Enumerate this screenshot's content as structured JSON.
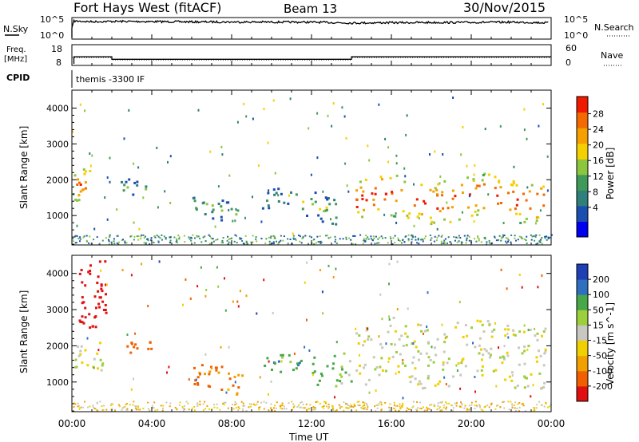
{
  "header": {
    "title": "Fort Hays West (fitACF)",
    "beam": "Beam 13",
    "date": "30/Nov/2015"
  },
  "noise_panel": {
    "left_label": "N.Sky",
    "right_label": "N.Search",
    "ticks_left": [
      "10^5",
      "10^0"
    ],
    "ticks_right": [
      "10^5",
      "10^0"
    ]
  },
  "freq_panel": {
    "left_label_1": "Freq.",
    "left_label_2": "[MHz]",
    "ticks_left": [
      "18",
      "8"
    ],
    "right_label": "Nave",
    "ticks_right": [
      "60",
      "0"
    ]
  },
  "cpid": {
    "label": "CPID",
    "text": "themis -3300 IF"
  },
  "range_axis": {
    "label": "Slant Range [km]",
    "ticks": [
      "4000",
      "3000",
      "2000",
      "1000"
    ]
  },
  "time_axis": {
    "label": "Time UT",
    "ticks": [
      "00:00",
      "04:00",
      "08:00",
      "12:00",
      "16:00",
      "20:00",
      "00:00"
    ]
  },
  "power_scale": {
    "label": "Power [dB]",
    "ticks": [
      "28",
      "24",
      "20",
      "16",
      "12",
      "8",
      "4"
    ],
    "colors": [
      "#0000ee",
      "#1a4fb0",
      "#2f7f7a",
      "#3f9a5a",
      "#8cc63f",
      "#f5d000",
      "#f5a000",
      "#f56a00",
      "#ef1a00"
    ]
  },
  "velocity_scale": {
    "label": "Velocity [m s^-1]",
    "ticks": [
      "200",
      "100",
      "50",
      "15",
      "-15",
      "-50",
      "-100",
      "-200"
    ],
    "colors": [
      "#1f3fb5",
      "#2f6fc0",
      "#48a848",
      "#9ccf3c",
      "#c8c8c0",
      "#f0d000",
      "#f0a000",
      "#f06000",
      "#e01010"
    ]
  },
  "chart_data": [
    {
      "type": "line",
      "title": "Fort Hays West (fitACF)",
      "ylabel": "N.Sky",
      "xlabel": "",
      "x_range": [
        "00:00",
        "00:00"
      ],
      "scale": "log",
      "ylim": [
        1,
        100000
      ],
      "series": [
        {
          "name": "N.Sky",
          "x": [
            0.1,
            1,
            2,
            4,
            6,
            8,
            10,
            12,
            14,
            16,
            18,
            20,
            22,
            23.9
          ],
          "values": [
            30000,
            20000,
            25000,
            22000,
            18000,
            17000,
            16000,
            15000,
            9000,
            11000,
            12000,
            13000,
            15000,
            10000
          ]
        }
      ]
    },
    {
      "type": "line",
      "ylabel": "Freq. [MHz]",
      "ylim": [
        8,
        18
      ],
      "series": [
        {
          "name": "Freq.",
          "x": [
            0.1,
            0.1,
            2.0,
            2.0,
            14.0,
            14.0,
            24.0
          ],
          "values": [
            8,
            12.0,
            12.0,
            10.6,
            10.6,
            12.0,
            12.0
          ]
        }
      ]
    },
    {
      "type": "heatmap",
      "ylabel": "Slant Range [km]",
      "xlabel": "Time UT",
      "x_ticks": [
        "00:00",
        "04:00",
        "08:00",
        "12:00",
        "16:00",
        "20:00",
        "00:00"
      ],
      "ylim": [
        180,
        4500
      ],
      "colorbar": {
        "label": "Power [dB]",
        "ticks": [
          4,
          8,
          12,
          16,
          20,
          24,
          28
        ]
      },
      "features": [
        {
          "t": [
            0.0,
            1.0
          ],
          "range": [
            1300,
            2300
          ],
          "power": 26
        },
        {
          "t": [
            2.4,
            3.8
          ],
          "range": [
            1600,
            2100
          ],
          "power": 12
        },
        {
          "t": [
            6.0,
            8.3
          ],
          "range": [
            900,
            1500
          ],
          "power": 14
        },
        {
          "t": [
            9.5,
            11.2
          ],
          "range": [
            1200,
            1700
          ],
          "power": 12
        },
        {
          "t": [
            11.5,
            13.3
          ],
          "range": [
            900,
            1700
          ],
          "power": 16
        },
        {
          "t": [
            14.2,
            23.8
          ],
          "range": [
            900,
            2100
          ],
          "power": 28
        }
      ]
    },
    {
      "type": "heatmap",
      "ylabel": "Slant Range [km]",
      "xlabel": "Time UT",
      "x_ticks": [
        "00:00",
        "04:00",
        "08:00",
        "12:00",
        "16:00",
        "20:00",
        "00:00"
      ],
      "ylim": [
        180,
        4500
      ],
      "colorbar": {
        "label": "Velocity [m s^-1]",
        "ticks": [
          200,
          100,
          50,
          15,
          -15,
          -50,
          -100,
          -200
        ]
      },
      "features": [
        {
          "t": [
            0.0,
            1.5
          ],
          "range": [
            1200,
            2000
          ],
          "velocity": 0
        },
        {
          "t": [
            0.3,
            1.7
          ],
          "range": [
            2400,
            4300
          ],
          "velocity": -200
        },
        {
          "t": [
            2.5,
            4.0
          ],
          "range": [
            1900,
            2300
          ],
          "velocity": -100
        },
        {
          "t": [
            6.0,
            8.5
          ],
          "range": [
            800,
            1500
          ],
          "velocity": -80
        },
        {
          "t": [
            9.5,
            11.5
          ],
          "range": [
            1200,
            1700
          ],
          "velocity": 60
        },
        {
          "t": [
            12.0,
            14.0
          ],
          "range": [
            900,
            2000
          ],
          "velocity": 40
        },
        {
          "t": [
            14.2,
            23.8
          ],
          "range": [
            900,
            2700
          ],
          "velocity": 0
        }
      ]
    }
  ]
}
